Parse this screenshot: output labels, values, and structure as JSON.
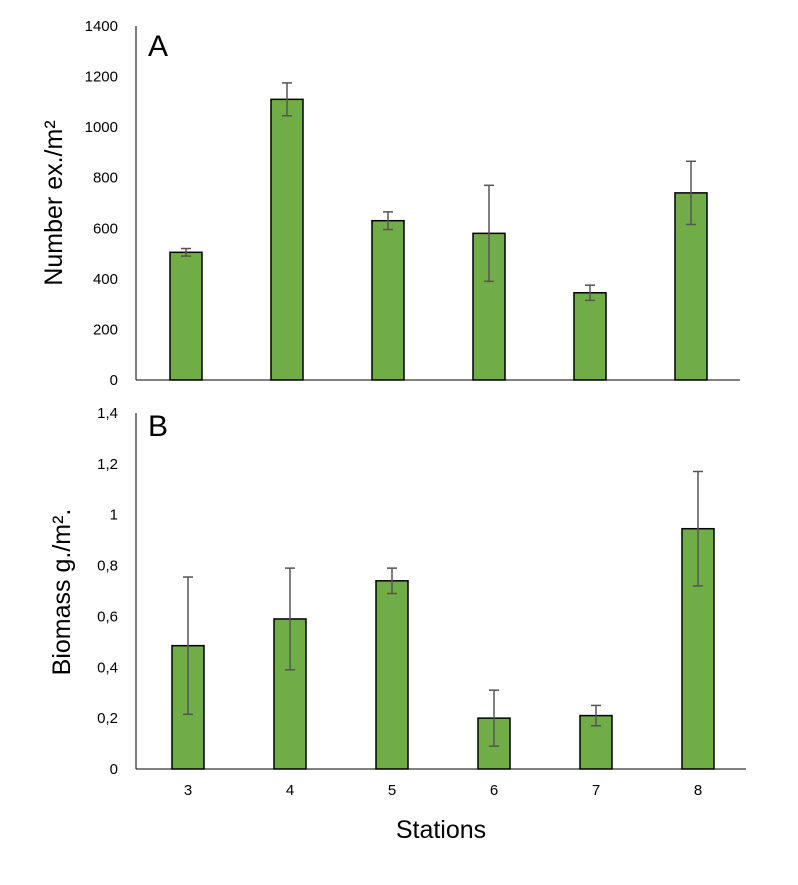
{
  "colors": {
    "bar_fill": "#70ad47",
    "bar_stroke": "#000000",
    "error_bar": "#555555",
    "axis": "#000000"
  },
  "xlabel": "Stations",
  "chart_data": [
    {
      "type": "bar",
      "panel": "A",
      "title": "",
      "ylabel": "Number ex./m²",
      "ylim": [
        0,
        1400
      ],
      "yticks": [
        0,
        200,
        400,
        600,
        800,
        1000,
        1200,
        1400
      ],
      "ytick_labels": [
        "0",
        "200",
        "400",
        "600",
        "800",
        "1000",
        "1200",
        "1400"
      ],
      "categories": [
        "3",
        "4",
        "5",
        "6",
        "7",
        "8"
      ],
      "values": [
        505,
        1110,
        630,
        580,
        345,
        740
      ],
      "errors": [
        15,
        65,
        35,
        190,
        30,
        125
      ],
      "grid": false,
      "legend": "none"
    },
    {
      "type": "bar",
      "panel": "B",
      "title": "",
      "ylabel": "Biomass  g./m².",
      "ylim": [
        0,
        1.4
      ],
      "yticks": [
        0,
        0.2,
        0.4,
        0.6,
        0.8,
        1.0,
        1.2,
        1.4
      ],
      "ytick_labels": [
        "0",
        "0,2",
        "0,4",
        "0,6",
        "0,8",
        "1",
        "1,2",
        "1,4"
      ],
      "categories": [
        "3",
        "4",
        "5",
        "6",
        "7",
        "8"
      ],
      "values": [
        0.485,
        0.59,
        0.74,
        0.2,
        0.21,
        0.945
      ],
      "errors": [
        0.27,
        0.2,
        0.05,
        0.11,
        0.04,
        0.225
      ],
      "grid": false,
      "legend": "none"
    }
  ]
}
